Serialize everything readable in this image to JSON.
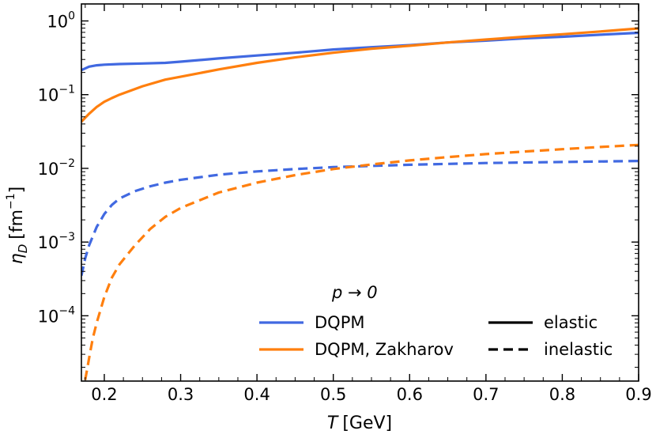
{
  "chart_data": {
    "type": "line",
    "title": "",
    "xlabel": "T [GeV]",
    "ylabel": "η_D [fm⁻¹]",
    "x_scale": "linear",
    "y_scale": "log",
    "xlim": [
      0.17,
      0.9
    ],
    "ylim": [
      1.3e-05,
      1.7
    ],
    "x_ticks": [
      {
        "value": 0.2,
        "label": "0.2"
      },
      {
        "value": 0.3,
        "label": "0.3"
      },
      {
        "value": 0.4,
        "label": "0.4"
      },
      {
        "value": 0.5,
        "label": "0.5"
      },
      {
        "value": 0.6,
        "label": "0.6"
      },
      {
        "value": 0.7,
        "label": "0.7"
      },
      {
        "value": 0.8,
        "label": "0.8"
      },
      {
        "value": 0.9,
        "label": "0.9"
      }
    ],
    "y_ticks": [
      {
        "value": 0.0001,
        "base": "10",
        "exp": "−4"
      },
      {
        "value": 0.001,
        "base": "10",
        "exp": "−3"
      },
      {
        "value": 0.01,
        "base": "10",
        "exp": "−2"
      },
      {
        "value": 0.1,
        "base": "10",
        "exp": "−1"
      },
      {
        "value": 1,
        "base": "10",
        "exp": "0"
      }
    ],
    "ylabel_parts": {
      "symbol": "η",
      "sub": "D",
      "unit": "[fm",
      "sup": "−1",
      "close": "]"
    },
    "xlabel_parts": {
      "symbol": "T",
      "unit": "[GeV]"
    },
    "annotation": "p → 0",
    "legend": {
      "placement": "lower-right",
      "models": [
        {
          "name": "DQPM",
          "color": "#4169E1"
        },
        {
          "name": "DQPM, Zakharov",
          "color": "#FF7F0E"
        }
      ],
      "styles": [
        {
          "name": "elastic",
          "dash": "solid"
        },
        {
          "name": "inelastic",
          "dash": "dashed"
        }
      ]
    },
    "series": [
      {
        "name": "DQPM elastic",
        "color": "#4169E1",
        "dash": "solid",
        "x": [
          0.17,
          0.18,
          0.19,
          0.2,
          0.22,
          0.25,
          0.28,
          0.3,
          0.35,
          0.4,
          0.45,
          0.5,
          0.55,
          0.6,
          0.65,
          0.7,
          0.75,
          0.8,
          0.85,
          0.9
        ],
        "y": [
          0.215,
          0.24,
          0.25,
          0.255,
          0.26,
          0.265,
          0.27,
          0.28,
          0.31,
          0.34,
          0.37,
          0.41,
          0.44,
          0.47,
          0.51,
          0.54,
          0.58,
          0.61,
          0.65,
          0.69
        ]
      },
      {
        "name": "DQPM, Zakharov elastic",
        "color": "#FF7F0E",
        "dash": "solid",
        "x": [
          0.17,
          0.18,
          0.19,
          0.2,
          0.21,
          0.22,
          0.25,
          0.28,
          0.3,
          0.35,
          0.4,
          0.45,
          0.5,
          0.55,
          0.6,
          0.65,
          0.7,
          0.75,
          0.8,
          0.85,
          0.9
        ],
        "y": [
          0.043,
          0.055,
          0.068,
          0.08,
          0.09,
          0.1,
          0.13,
          0.16,
          0.175,
          0.22,
          0.27,
          0.32,
          0.37,
          0.42,
          0.46,
          0.51,
          0.56,
          0.61,
          0.66,
          0.72,
          0.79
        ]
      },
      {
        "name": "DQPM inelastic",
        "color": "#4169E1",
        "dash": "dashed",
        "x": [
          0.17,
          0.175,
          0.18,
          0.19,
          0.2,
          0.21,
          0.22,
          0.24,
          0.26,
          0.28,
          0.3,
          0.35,
          0.4,
          0.45,
          0.5,
          0.6,
          0.7,
          0.8,
          0.9
        ],
        "y": [
          0.00035,
          0.0006,
          0.0009,
          0.0016,
          0.0024,
          0.0032,
          0.0039,
          0.0049,
          0.0057,
          0.0064,
          0.007,
          0.0082,
          0.0091,
          0.0098,
          0.0104,
          0.0112,
          0.0118,
          0.0122,
          0.0126
        ]
      },
      {
        "name": "DQPM, Zakharov inelastic",
        "color": "#FF7F0E",
        "dash": "dashed",
        "x": [
          0.175,
          0.178,
          0.181,
          0.185,
          0.19,
          0.2,
          0.21,
          0.22,
          0.24,
          0.26,
          0.28,
          0.3,
          0.35,
          0.4,
          0.45,
          0.5,
          0.55,
          0.6,
          0.65,
          0.7,
          0.75,
          0.8,
          0.85,
          0.9
        ],
        "y": [
          1.35e-05,
          2e-05,
          3e-05,
          5e-05,
          8e-05,
          0.00018,
          0.00033,
          0.0005,
          0.0009,
          0.0015,
          0.0022,
          0.0029,
          0.0047,
          0.0064,
          0.0081,
          0.0098,
          0.0113,
          0.0128,
          0.0142,
          0.0156,
          0.0169,
          0.0182,
          0.0195,
          0.0208
        ]
      }
    ]
  }
}
